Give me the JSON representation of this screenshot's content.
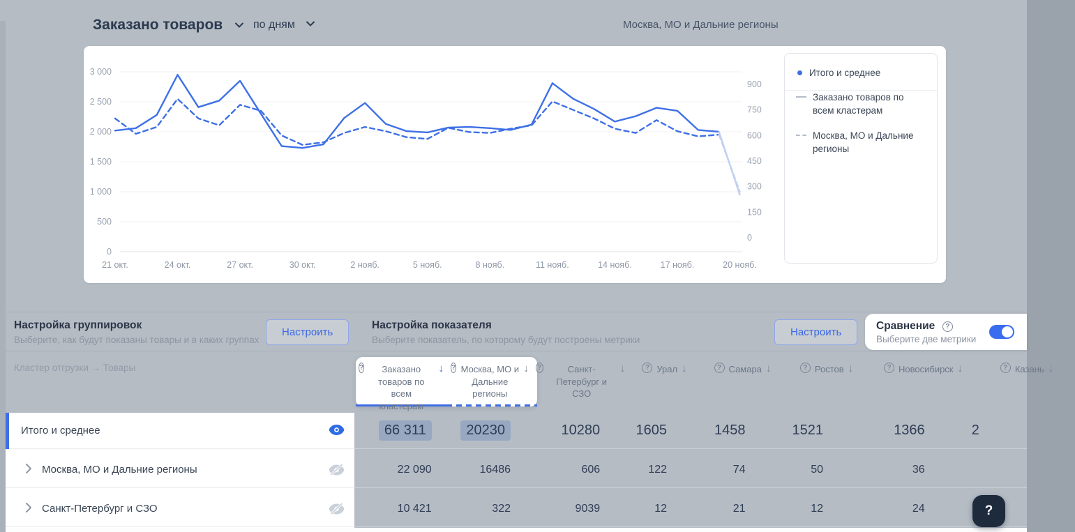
{
  "header": {
    "title": "Заказано товаров",
    "period_selector": "по дням",
    "context_label": "Москва, МО и Дальние регионы"
  },
  "chart_data": {
    "type": "line",
    "x_tick_labels": [
      "21 окт.",
      "24 окт.",
      "27 окт.",
      "30 окт.",
      "2 нояб.",
      "5 нояб.",
      "8 нояб.",
      "11 нояб.",
      "14 нояб.",
      "17 нояб.",
      "20 нояб."
    ],
    "left_axis": {
      "ticks": [
        0,
        500,
        1000,
        1500,
        2000,
        2500,
        3000
      ],
      "labels": [
        "0",
        "500",
        "1 000",
        "1 500",
        "2 000",
        "2 500",
        "3 000"
      ],
      "range": [
        0,
        3000
      ]
    },
    "right_axis": {
      "ticks": [
        0,
        150,
        300,
        450,
        600,
        750,
        900
      ],
      "labels": [
        "0",
        "150",
        "300",
        "450",
        "600",
        "750",
        "900"
      ],
      "range": [
        0,
        900
      ]
    },
    "series": [
      {
        "name": "Заказано товаров по всем кластерам",
        "style": "solid",
        "axis": "left",
        "color": "#3e70e6",
        "values": [
          2020,
          2060,
          2280,
          2950,
          2410,
          2520,
          2850,
          2300,
          1760,
          1730,
          1790,
          2230,
          2480,
          2130,
          2010,
          1990,
          2070,
          2080,
          2060,
          2030,
          2120,
          2810,
          2550,
          2380,
          2170,
          2260,
          2400,
          2350,
          2030,
          2000,
          950
        ]
      },
      {
        "name": "Москва, МО и Дальние регионы",
        "style": "dashed",
        "axis": "right",
        "color": "#3e70e6",
        "values": [
          700,
          610,
          650,
          815,
          700,
          660,
          780,
          745,
          600,
          545,
          560,
          615,
          650,
          625,
          590,
          580,
          645,
          620,
          615,
          640,
          660,
          800,
          750,
          700,
          640,
          615,
          690,
          625,
          595,
          605,
          270
        ]
      }
    ],
    "incomplete_tail_points": 1,
    "tail_color": "#c2d0f0",
    "legend": [
      {
        "label": "Итого и среднее",
        "marker": "dot"
      },
      {
        "label": "Заказано товаров по всем кластерам",
        "marker": "line"
      },
      {
        "label": "Москва, МО и Дальние регионы",
        "marker": "dash"
      }
    ],
    "grid": true,
    "legend_position": "right"
  },
  "settings": {
    "groupings": {
      "title": "Настройка группировок",
      "subtitle": "Выберите, как будут показаны товары и в каких группах",
      "button": "Настроить"
    },
    "metric": {
      "title": "Настройка показателя",
      "subtitle": "Выберите показатель, по которому будут построены метрики",
      "button": "Настроить"
    },
    "comparison": {
      "title": "Сравнение",
      "subtitle": "Выберите две метрики",
      "enabled": true
    }
  },
  "table": {
    "row_header_label": "Кластер отгрузки → Товары",
    "columns": [
      {
        "label": "Заказано товаров по всем кластерам",
        "sorted": true,
        "selected_metric": "solid"
      },
      {
        "label": "Москва, МО и Дальние регионы",
        "sorted": false,
        "selected_metric": "dashed"
      },
      {
        "label": "Санкт-Петербург и СЗО",
        "sorted": false
      },
      {
        "label": "Урал",
        "sorted": false
      },
      {
        "label": "Самара",
        "sorted": false
      },
      {
        "label": "Ростов",
        "sorted": false
      },
      {
        "label": "Новосибирск",
        "sorted": false
      },
      {
        "label": "Казань",
        "sorted": false
      }
    ],
    "rows": [
      {
        "label": "Итого и среднее",
        "expandable": false,
        "visible_on_chart": true,
        "emphasis": true,
        "values": [
          "66 311",
          "20230",
          "10280",
          "1605",
          "1458",
          "1521",
          "1366",
          "2"
        ],
        "highlighted_cols": [
          0,
          1
        ]
      },
      {
        "label": "Москва, МО и Дальние регионы",
        "expandable": true,
        "visible_on_chart": false,
        "emphasis": false,
        "values": [
          "22 090",
          "16486",
          "606",
          "122",
          "74",
          "50",
          "36",
          ""
        ],
        "highlighted_cols": []
      },
      {
        "label": "Санкт-Петербург и СЗО",
        "expandable": true,
        "visible_on_chart": false,
        "emphasis": false,
        "values": [
          "10 421",
          "322",
          "9039",
          "12",
          "21",
          "12",
          "24",
          ""
        ],
        "highlighted_cols": []
      }
    ]
  },
  "help_button_label": "?",
  "colors": {
    "accent": "#3f6de4",
    "background": "#b5bcc4",
    "fab": "#1d2b3d",
    "highlight_chip": "#aebdd6",
    "toggle_on": "#3a6cf0"
  }
}
